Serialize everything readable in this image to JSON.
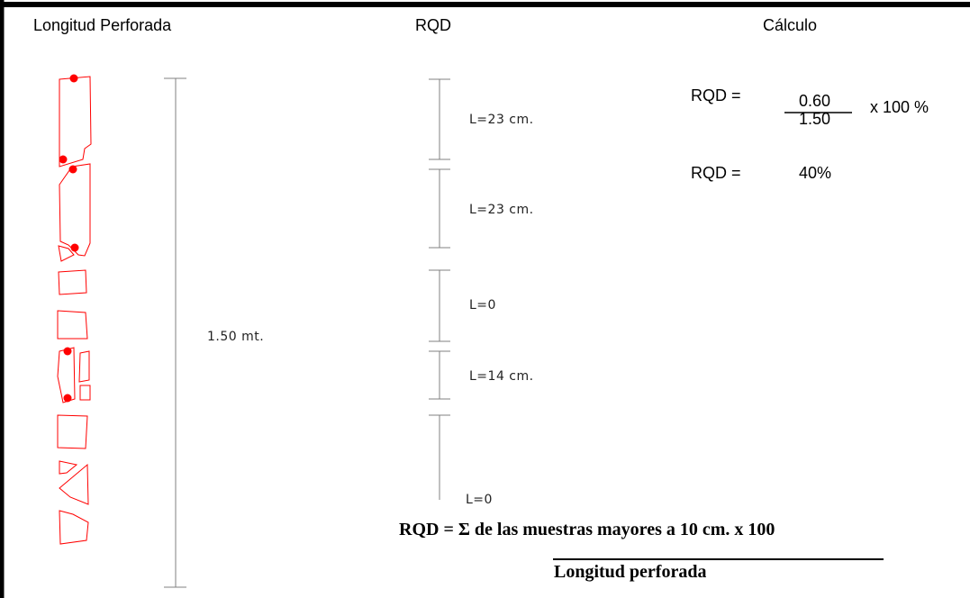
{
  "headers": {
    "col1": "Longitud Perforada",
    "col2": "RQD",
    "col3": "Cálculo"
  },
  "total_length_label": "1.50 mt.",
  "segments": [
    {
      "label": "L=23 cm."
    },
    {
      "label": "L=23 cm."
    },
    {
      "label": "L=0"
    },
    {
      "label": "L=14 cm."
    },
    {
      "label": "L=0"
    }
  ],
  "calculation": {
    "lhs": "RQD =",
    "numerator": "0.60",
    "denominator": "1.50",
    "multiplier": "x 100 %",
    "result_lhs": "RQD =",
    "result_value": "40%"
  },
  "formula": {
    "text": "RQD =  Σ de las muestras mayores a 10 cm.  x 100",
    "denominator": "Longitud perforada"
  },
  "colors": {
    "core_outline": "#ff0000",
    "fracture_dot": "#ff0000",
    "dimension_line": "#808080",
    "border": "#000000"
  }
}
